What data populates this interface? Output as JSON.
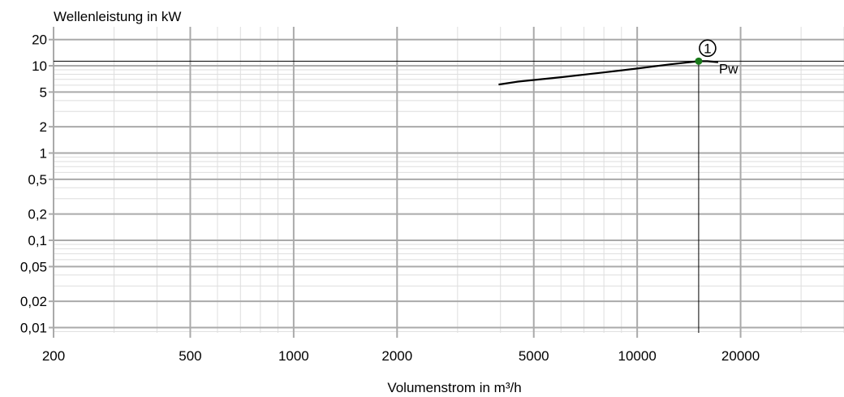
{
  "chart_data": {
    "type": "line",
    "title": "",
    "ylabel": "Wellenleistung in kW",
    "xlabel": "Volumenstrom in m³/h",
    "x_scale": "log",
    "y_scale": "log",
    "xlim": [
      200,
      40000
    ],
    "ylim": [
      0.0087,
      28
    ],
    "grid": true,
    "x_ticks": [
      {
        "value": 200,
        "label": "200"
      },
      {
        "value": 500,
        "label": "500"
      },
      {
        "value": 1000,
        "label": "1000"
      },
      {
        "value": 2000,
        "label": "2000"
      },
      {
        "value": 5000,
        "label": "5000"
      },
      {
        "value": 10000,
        "label": "10000"
      },
      {
        "value": 20000,
        "label": "20000"
      }
    ],
    "y_ticks": [
      {
        "value": 20,
        "label": "20"
      },
      {
        "value": 10,
        "label": "10"
      },
      {
        "value": 5,
        "label": "5"
      },
      {
        "value": 2,
        "label": "2"
      },
      {
        "value": 1,
        "label": "1"
      },
      {
        "value": 0.5,
        "label": "0,5"
      },
      {
        "value": 0.2,
        "label": "0,2"
      },
      {
        "value": 0.1,
        "label": "0,1"
      },
      {
        "value": 0.05,
        "label": "0,05"
      },
      {
        "value": 0.02,
        "label": "0,02"
      },
      {
        "value": 0.01,
        "label": "0,01"
      }
    ],
    "series": [
      {
        "name": "Pw",
        "color": "#000000",
        "x": [
          3950,
          4500,
          6000,
          8000,
          10000,
          12500,
          15100,
          16000,
          17200
        ],
        "y": [
          6.1,
          6.6,
          7.4,
          8.4,
          9.3,
          10.4,
          11.3,
          11.3,
          11.0
        ]
      }
    ],
    "operating_point": {
      "label": "1",
      "x": 15100,
      "y": 11.3,
      "color": "#1a7a1a"
    }
  }
}
